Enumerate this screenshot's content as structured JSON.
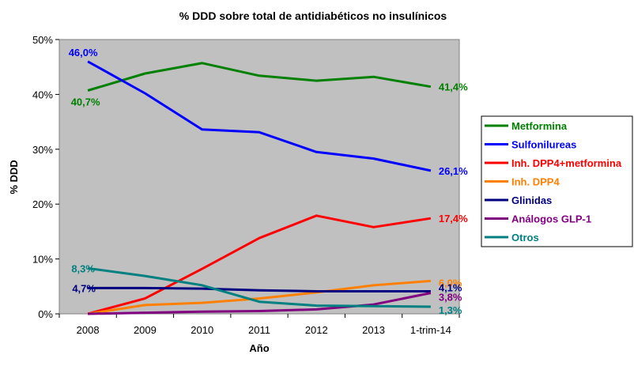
{
  "chart_data": {
    "type": "line",
    "title": "% DDD sobre total de antidiabéticos no insulínicos",
    "xlabel": "Año",
    "ylabel": "% DDD",
    "categories": [
      "2008",
      "2009",
      "2010",
      "2011",
      "2012",
      "2013",
      "1-trim-14"
    ],
    "ylim": [
      0,
      50
    ],
    "yticks": [
      "0%",
      "10%",
      "20%",
      "30%",
      "40%",
      "50%"
    ],
    "grid": false,
    "plot_background": "#c0c0c0",
    "legend_position": "right",
    "series": [
      {
        "name": "Metformina",
        "color": "#008000",
        "values": [
          40.7,
          43.8,
          45.7,
          43.4,
          42.5,
          43.2,
          41.4
        ],
        "labels": {
          "start": "40,7%",
          "end": "41,4%"
        }
      },
      {
        "name": "Sulfonilureas",
        "color": "#0000ff",
        "values": [
          46.0,
          40.2,
          33.6,
          33.1,
          29.5,
          28.3,
          26.1
        ],
        "labels": {
          "start": "46,0%",
          "end": "26,1%"
        }
      },
      {
        "name": "Inh. DPP4+metformina",
        "color": "#ff0000",
        "values": [
          0.0,
          2.8,
          8.2,
          13.8,
          17.9,
          15.8,
          17.4
        ],
        "labels": {
          "start": "",
          "end": "17,4%"
        }
      },
      {
        "name": "Inh. DPP4",
        "color": "#ff8000",
        "values": [
          0.0,
          1.6,
          2.0,
          2.8,
          3.9,
          5.2,
          6.0
        ],
        "labels": {
          "start": "",
          "end": "6,0%"
        }
      },
      {
        "name": "Glinidas",
        "color": "#000080",
        "values": [
          4.7,
          4.7,
          4.6,
          4.3,
          4.1,
          4.1,
          4.1
        ],
        "labels": {
          "start": "4,7%",
          "end": "4,1%"
        }
      },
      {
        "name": "Análogos GLP-1",
        "color": "#800080",
        "values": [
          0.0,
          0.2,
          0.4,
          0.5,
          0.8,
          1.7,
          3.8
        ],
        "labels": {
          "start": "",
          "end": "3,8%"
        }
      },
      {
        "name": "Otros",
        "color": "#008080",
        "values": [
          8.3,
          6.9,
          5.2,
          2.2,
          1.5,
          1.4,
          1.3
        ],
        "labels": {
          "start": "8,3%",
          "end": "1,3%"
        }
      }
    ]
  }
}
